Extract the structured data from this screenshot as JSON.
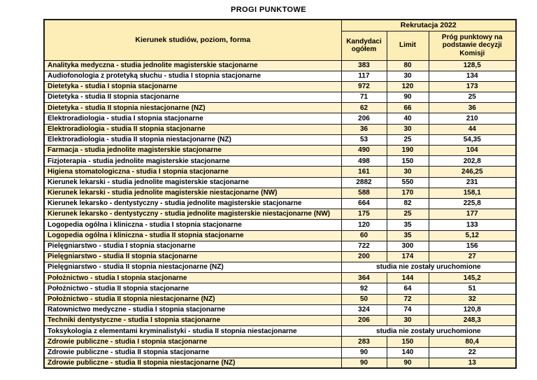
{
  "title": "PROGI PUNKTOWE",
  "colors": {
    "header_bg": "#fdeeb8",
    "alt_row_bg": "#fff3cf",
    "border": "#1a1a1a"
  },
  "table": {
    "header": {
      "group": "Rekrutacja 2022",
      "program": "Kierunek studiów, poziom, forma",
      "candidates": "Kandydaci ogółem",
      "limit": "Limit",
      "threshold": "Próg punktowy na podstawie decyzji Komisji"
    },
    "rows": [
      {
        "name": "Analityka medyczna - studia jednolite magisterskie stacjonarne",
        "kandydaci": "383",
        "limit": "80",
        "prog": "128,5"
      },
      {
        "name": "Audiofonologia z protetyką słuchu  - studia I stopnia stacjonarne",
        "kandydaci": "117",
        "limit": "30",
        "prog": "134"
      },
      {
        "name": "Dietetyka - studia I stopnia stacjonarne",
        "kandydaci": "972",
        "limit": "120",
        "prog": "173"
      },
      {
        "name": "Dietetyka - studia II stopnia stacjonarne",
        "kandydaci": "71",
        "limit": "90",
        "prog": "25"
      },
      {
        "name": "Dietetyka - studia II stopnia niestacjonarne (NZ)",
        "kandydaci": "62",
        "limit": "66",
        "prog": "36"
      },
      {
        "name": "Elektroradiologia - studia I stopnia stacjonarne",
        "kandydaci": "206",
        "limit": "40",
        "prog": "210"
      },
      {
        "name": "Elektroradiologia - studia II stopnia stacjonarne",
        "kandydaci": "36",
        "limit": "30",
        "prog": "44"
      },
      {
        "name": "Elektroradiologia - studia II stopnia niestacjonarne (NZ)",
        "kandydaci": "53",
        "limit": "25",
        "prog": "54,35"
      },
      {
        "name": "Farmacja - studia jednolite magisterskie stacjonarne",
        "kandydaci": "490",
        "limit": "190",
        "prog": "104"
      },
      {
        "name": "Fizjoterapia - studia jednolite magisterskie stacjonarne",
        "kandydaci": "498",
        "limit": "150",
        "prog": "202,8"
      },
      {
        "name": "Higiena stomatologiczna - studia I stopnia stacjonarne",
        "kandydaci": "161",
        "limit": "30",
        "prog": "246,25"
      },
      {
        "name": "Kierunek lekarski - studia jednolite magisterskie stacjonarne",
        "kandydaci": "2882",
        "limit": "550",
        "prog": "231"
      },
      {
        "name": "Kierunek lekarski - studia jednolite magisterskie niestacjonarne (NW)",
        "kandydaci": "588",
        "limit": "170",
        "prog": "158,1"
      },
      {
        "name": "Kierunek lekarsko - dentystyczny - studia jednolite magisterskie stacjonarne",
        "kandydaci": "664",
        "limit": "82",
        "prog": "225,8"
      },
      {
        "name": "Kierunek lekarsko - dentystyczny - studia jednolite magisterskie niestacjonarne (NW)",
        "kandydaci": "175",
        "limit": "25",
        "prog": "177"
      },
      {
        "name": "Logopedia ogólna i kliniczna - studia I stopnia stacjonarne",
        "kandydaci": "120",
        "limit": "35",
        "prog": "133"
      },
      {
        "name": "Logopedia ogólna i kliniczna - studia II stopnia stacjonarne",
        "kandydaci": "60",
        "limit": "35",
        "prog": "5,12"
      },
      {
        "name": "Pielęgniarstwo - studia I stopnia stacjonarne",
        "kandydaci": "722",
        "limit": "300",
        "prog": "156"
      },
      {
        "name": "Pielęgniarstwo - studia II stopnia stacjonarne",
        "kandydaci": "200",
        "limit": "174",
        "prog": "27"
      },
      {
        "name": "Pielęgniarstwo - studia II stopnia niestacjonarne (NZ)",
        "merged": "studia nie zostały uruchomione"
      },
      {
        "name": "Położnictwo - studia I stopnia stacjonarne",
        "kandydaci": "364",
        "limit": "144",
        "prog": "145,2"
      },
      {
        "name": "Położnictwo - studia II stopnia stacjonarne",
        "kandydaci": "92",
        "limit": "64",
        "prog": "51"
      },
      {
        "name": "Położnictwo - studia II stopnia niestacjonarne (NZ)",
        "kandydaci": "50",
        "limit": "72",
        "prog": "32"
      },
      {
        "name": "Ratownictwo medyczne - studia I stopnia stacjonarne",
        "kandydaci": "324",
        "limit": "74",
        "prog": "120,8"
      },
      {
        "name": "Techniki dentystyczne - studia I stopnia stacjonarne",
        "kandydaci": "206",
        "limit": "30",
        "prog": "248,3"
      },
      {
        "name": "Toksykologia z elementami kryminalistyki - studia II stopnia niestacjonarne",
        "merged": "studia nie zostały uruchomione"
      },
      {
        "name": "Zdrowie publiczne - studia I stopnia stacjonarne",
        "kandydaci": "283",
        "limit": "150",
        "prog": "80,4"
      },
      {
        "name": "Zdrowie publiczne - studia II stopnia stacjonarne",
        "kandydaci": "90",
        "limit": "140",
        "prog": "22"
      },
      {
        "name": "Zdrowie publiczne - studia II stopnia niestacjonarne (NZ)",
        "kandydaci": "90",
        "limit": "90",
        "prog": "13"
      }
    ]
  }
}
